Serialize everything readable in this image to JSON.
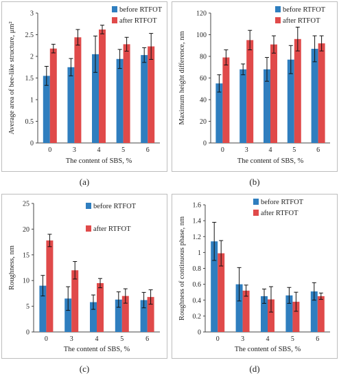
{
  "colors": {
    "before": "#2f7ebf",
    "after": "#e04a4a"
  },
  "panels": [
    {
      "caption": "(a)",
      "chart_data": {
        "type": "bar",
        "categories": [
          "0",
          "3",
          "4",
          "5",
          "6"
        ],
        "series": [
          {
            "name": "before  RTFOT",
            "values": [
              1.55,
              1.75,
              2.05,
              1.94,
              2.03
            ],
            "errors": [
              0.22,
              0.2,
              0.42,
              0.22,
              0.17
            ]
          },
          {
            "name": "after RTFOT",
            "values": [
              2.18,
              2.44,
              2.62,
              2.28,
              2.23
            ],
            "errors": [
              0.1,
              0.18,
              0.1,
              0.16,
              0.3
            ]
          }
        ],
        "title": "",
        "xlabel": "The content of SBS, %",
        "ylabel": "Average area of bee-like structure, μm²",
        "ylim": [
          0,
          3
        ],
        "yticks": [
          "0",
          "0.5",
          "1",
          "1.5",
          "2",
          "2.5",
          "3"
        ],
        "grid": false,
        "legend": "top-right"
      }
    },
    {
      "caption": "(b)",
      "chart_data": {
        "type": "bar",
        "categories": [
          "0",
          "3",
          "4",
          "5",
          "6"
        ],
        "series": [
          {
            "name": "before  RTFOT",
            "values": [
              55,
              68,
              68,
              77,
              87
            ],
            "errors": [
              8,
              5,
              11,
              13,
              12
            ]
          },
          {
            "name": "after RTFOT",
            "values": [
              79,
              95,
              91,
              96,
              92
            ],
            "errors": [
              7,
              9,
              8,
              11,
              7
            ]
          }
        ],
        "title": "",
        "xlabel": "The content of SBS, %",
        "ylabel": "Maximum height difference,   nm",
        "ylim": [
          0,
          120
        ],
        "yticks": [
          "0",
          "20",
          "40",
          "60",
          "80",
          "100",
          "120"
        ],
        "grid": false,
        "legend": "top-right"
      }
    },
    {
      "caption": "(c)",
      "chart_data": {
        "type": "bar",
        "categories": [
          "0",
          "3",
          "4",
          "5",
          "6"
        ],
        "series": [
          {
            "name": "before  RTFOT",
            "values": [
              9.0,
              6.5,
              5.8,
              6.3,
              6.2
            ],
            "errors": [
              2.0,
              2.3,
              1.4,
              1.5,
              1.5
            ]
          },
          {
            "name": "after RTFOT",
            "values": [
              17.8,
              12.0,
              9.5,
              7.0,
              6.8
            ],
            "errors": [
              1.2,
              1.7,
              0.9,
              1.4,
              1.4
            ]
          }
        ],
        "title": "",
        "xlabel": "The content of SBS, %",
        "ylabel": "Roughness,   nm",
        "ylim": [
          0,
          25
        ],
        "yticks": [
          "0",
          "5",
          "10",
          "15",
          "20",
          "25"
        ],
        "grid": false,
        "legend": "top-right"
      }
    },
    {
      "caption": "(d)",
      "chart_data": {
        "type": "bar",
        "categories": [
          "0",
          "3",
          "4",
          "5",
          "6"
        ],
        "series": [
          {
            "name": "before RTFOT",
            "values": [
              1.14,
              0.6,
              0.45,
              0.46,
              0.51
            ],
            "errors": [
              0.24,
              0.21,
              0.09,
              0.1,
              0.11
            ]
          },
          {
            "name": "after RTFOT",
            "values": [
              0.99,
              0.52,
              0.41,
              0.38,
              0.45
            ],
            "errors": [
              0.16,
              0.07,
              0.16,
              0.12,
              0.04
            ]
          }
        ],
        "title": "",
        "xlabel": "The content of SBS, %",
        "ylabel": "Roughness of continuous phase, nm",
        "ylim": [
          0,
          1.6
        ],
        "yticks": [
          "0",
          "0.2",
          "0.4",
          "0.6",
          "0.8",
          "1",
          "1.2",
          "1.4",
          "1.6"
        ],
        "grid": false,
        "legend": "top-right"
      }
    }
  ]
}
